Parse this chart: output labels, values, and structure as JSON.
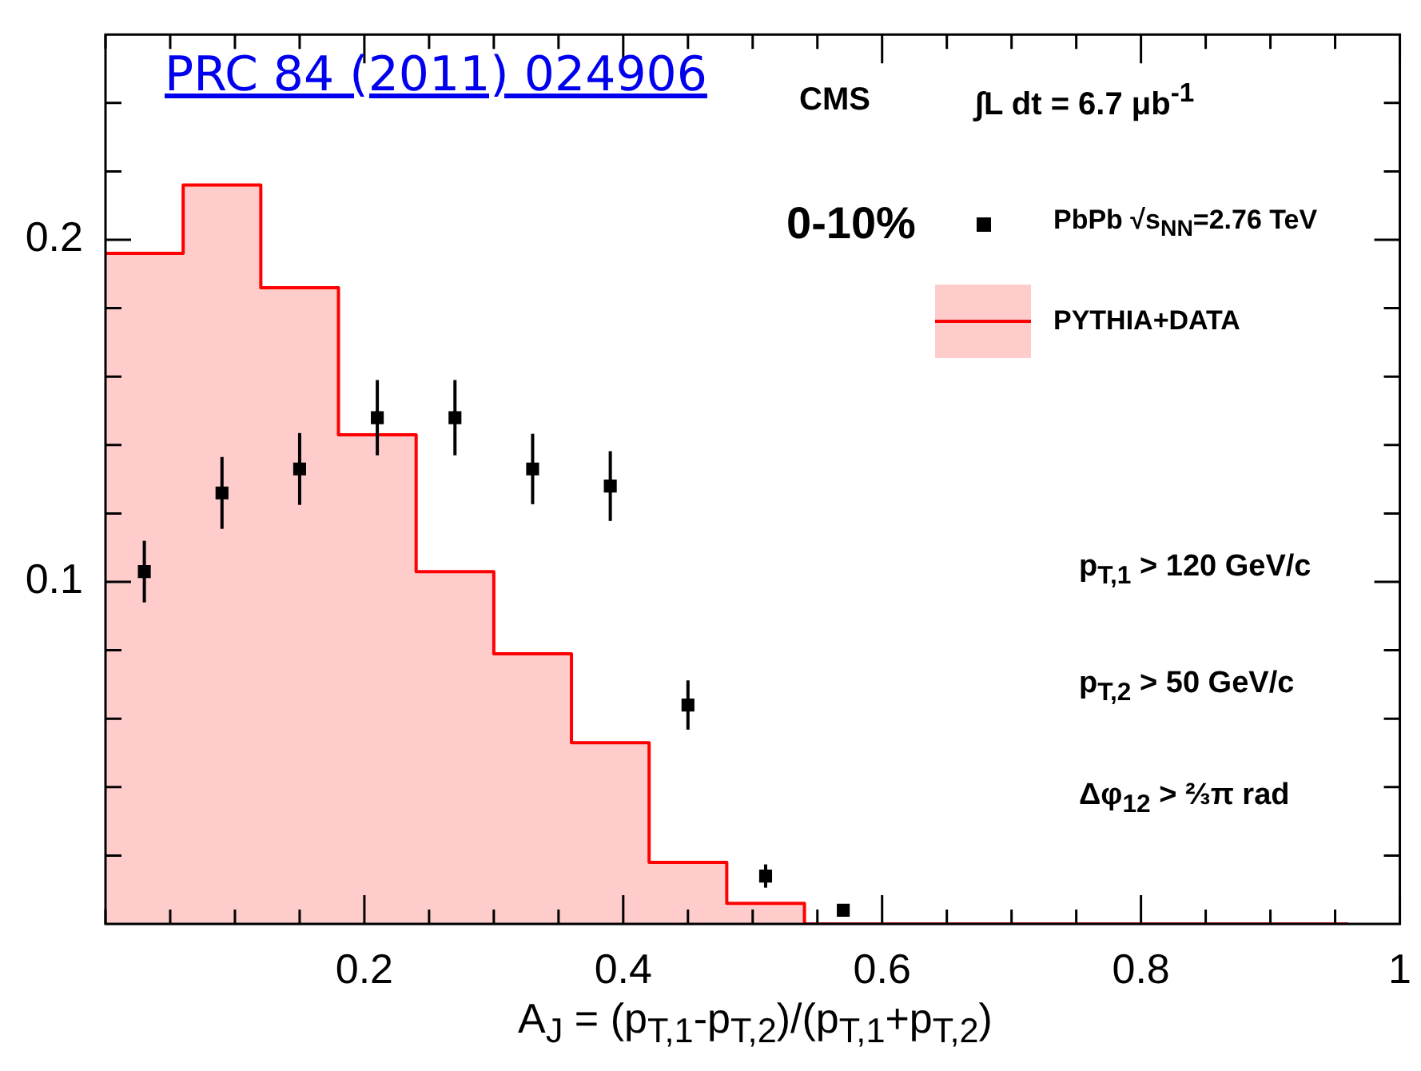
{
  "chart_data": {
    "type": "histogram",
    "xlabel": "A$_{J}$ = (p$_{T,1}$-p$_{T,2}$)/(p$_{T,1}$+p$_{T,2}$)",
    "annotations": [
      "PRC 84 (2011) 024906",
      "CMS",
      "∫L dt = 6.7 μb$^{-1}$",
      "0-10%",
      "p$_{T,1}$ > 120 GeV/c",
      "p$_{T,2}$ > 50 GeV/c",
      "Δφ$_{12}$ > ⅔π rad"
    ],
    "xlim": [
      0,
      1
    ],
    "ylim": [
      0,
      0.26
    ],
    "xticks": [
      {
        "value": 0,
        "label": null
      },
      {
        "value": 0.05,
        "label": null
      },
      {
        "value": 0.1,
        "label": null
      },
      {
        "value": 0.15,
        "label": null
      },
      0.2,
      {
        "value": 0.25,
        "label": null
      },
      {
        "value": 0.3,
        "label": null
      },
      {
        "value": 0.35,
        "label": null
      },
      0.4,
      {
        "value": 0.45,
        "label": null
      },
      {
        "value": 0.5,
        "label": null
      },
      {
        "value": 0.55,
        "label": null
      },
      0.6,
      {
        "value": 0.65,
        "label": null
      },
      {
        "value": 0.7,
        "label": null
      },
      {
        "value": 0.75,
        "label": null
      },
      0.8,
      {
        "value": 0.85,
        "label": null
      },
      {
        "value": 0.9,
        "label": null
      },
      {
        "value": 0.95,
        "label": null
      },
      1
    ],
    "yticks": [
      {
        "value": 0.02,
        "label": null
      },
      {
        "value": 0.04,
        "label": null
      },
      {
        "value": 0.06,
        "label": null
      },
      {
        "value": 0.08,
        "label": null
      },
      0.1,
      {
        "value": 0.12,
        "label": null
      },
      {
        "value": 0.14,
        "label": null
      },
      {
        "value": 0.16,
        "label": null
      },
      {
        "value": 0.18,
        "label": null
      },
      0.2,
      {
        "value": 0.22,
        "label": null
      },
      {
        "value": 0.24,
        "label": null
      }
    ],
    "legend": "top right",
    "marker": "square",
    "series": [
      {
        "name": "PbPb √s$_{NN}$=2.76 TeV",
        "type": "scatter",
        "color": "#000000",
        "x": [
          0.03,
          0.09,
          0.15,
          0.21,
          0.27,
          0.33,
          0.39,
          0.45,
          0.51,
          0.57
        ],
        "values": [
          0.103,
          0.126,
          0.133,
          0.148,
          0.148,
          0.133,
          0.128,
          0.064,
          0.014,
          0.004
        ],
        "errors": [
          0.009,
          0.0105,
          0.0105,
          0.011,
          0.011,
          0.0103,
          0.0102,
          0.0072,
          0.0034,
          0.001
        ]
      },
      {
        "name": "PYTHIA+DATA",
        "color": "#ff0000",
        "bins": [
          0,
          0.06,
          0.12,
          0.18,
          0.24,
          0.3,
          0.36,
          0.42,
          0.48,
          0.54,
          0.6,
          0.66,
          0.72,
          0.78,
          0.84,
          0.9,
          0.96
        ],
        "values": [
          0.196,
          0.216,
          0.186,
          0.143,
          0.103,
          0.079,
          0.053,
          0.018,
          0.006,
          0,
          0,
          0,
          0,
          0,
          0,
          0
        ]
      }
    ]
  }
}
